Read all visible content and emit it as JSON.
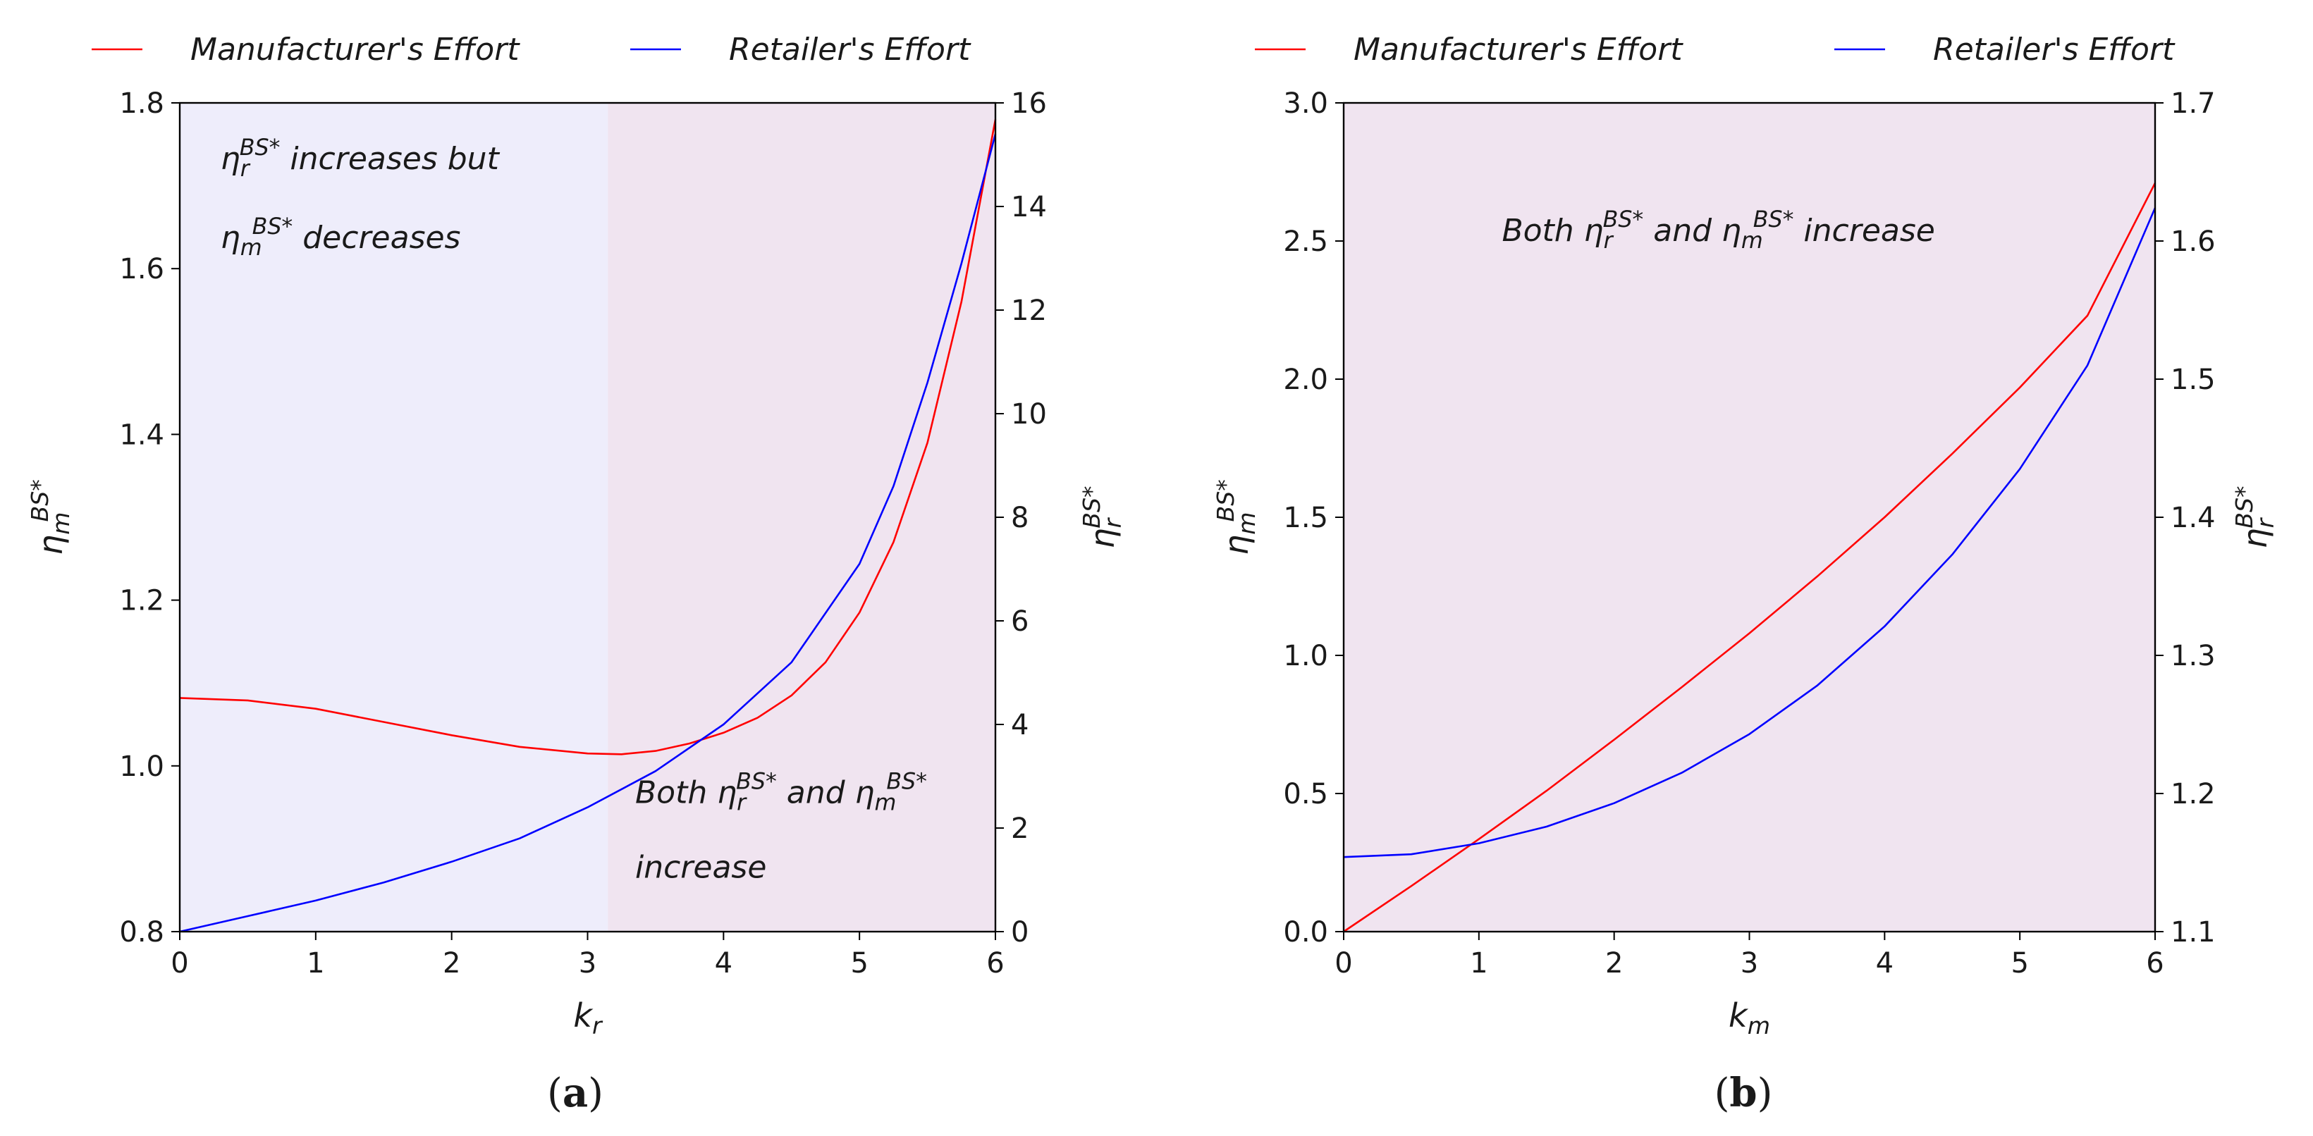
{
  "figure": {
    "captions": {
      "a_open": "(",
      "a_letter": "a",
      "a_close": ")",
      "b_open": "(",
      "b_letter": "b",
      "b_close": ")"
    }
  },
  "chart_data": [
    {
      "id": "a",
      "type": "line",
      "legend": {
        "placement": "top",
        "entries": [
          {
            "label": "Manufacturer's Effort",
            "color": "#ff0000"
          },
          {
            "label": "Retailer's Effort",
            "color": "#0000ff"
          }
        ]
      },
      "xlabel_base": "k",
      "xlabel_sub": "r",
      "ylabel_left": {
        "base": "η",
        "sub": "m",
        "sup": "BS*"
      },
      "ylabel_right": {
        "base": "η",
        "sub": "r",
        "sup": "BS*"
      },
      "xlim": [
        0,
        6
      ],
      "ylim_left": [
        0.8,
        1.8
      ],
      "ylim_right": [
        0,
        16
      ],
      "xticks": [
        0,
        1,
        2,
        3,
        4,
        5,
        6
      ],
      "xtick_labels": [
        "0",
        "1",
        "2",
        "3",
        "4",
        "5",
        "6"
      ],
      "yticks_left": [
        0.8,
        1.0,
        1.2,
        1.4,
        1.6,
        1.8
      ],
      "ytick_labels_left": [
        "0.8",
        "1.0",
        "1.2",
        "1.4",
        "1.6",
        "1.8"
      ],
      "yticks_right": [
        0,
        2,
        4,
        6,
        8,
        10,
        12,
        14,
        16
      ],
      "ytick_labels_right": [
        "0",
        "2",
        "4",
        "6",
        "8",
        "10",
        "12",
        "14",
        "16"
      ],
      "regions": [
        {
          "x_range": [
            0,
            3.15
          ],
          "color": "#eeedfb"
        },
        {
          "x_range": [
            3.15,
            6
          ],
          "color": "#f0e4f0"
        }
      ],
      "annotations": [
        {
          "at": [
            0.3,
            1.72
          ],
          "axis": "left",
          "parts": [
            {
              "t": "η"
            },
            {
              "t": "r",
              "baseline": "sub"
            },
            {
              "t": "BS*",
              "baseline": "super"
            },
            {
              "t": " increases but"
            }
          ]
        },
        {
          "at": [
            0.3,
            1.625
          ],
          "axis": "left",
          "parts": [
            {
              "t": "η"
            },
            {
              "t": "m",
              "baseline": "sub"
            },
            {
              "t": "BS*",
              "baseline": "super"
            },
            {
              "t": " decreases"
            }
          ]
        },
        {
          "at": [
            3.35,
            0.955
          ],
          "axis": "left",
          "parts": [
            {
              "t": "Both η"
            },
            {
              "t": "r",
              "baseline": "sub"
            },
            {
              "t": "BS*",
              "baseline": "super"
            },
            {
              "t": " and η"
            },
            {
              "t": "m",
              "baseline": "sub"
            },
            {
              "t": "BS*",
              "baseline": "super"
            }
          ]
        },
        {
          "at": [
            3.35,
            0.865
          ],
          "axis": "left",
          "parts": [
            {
              "t": "increase"
            }
          ]
        }
      ],
      "series": [
        {
          "name": "Manufacturer's Effort",
          "color": "#ff0000",
          "axis": "left",
          "x": [
            0,
            0.5,
            1,
            1.5,
            2,
            2.5,
            3,
            3.25,
            3.5,
            3.75,
            4,
            4.25,
            4.5,
            4.75,
            5,
            5.25,
            5.5,
            5.75,
            6
          ],
          "y": [
            1.082,
            1.079,
            1.069,
            1.053,
            1.037,
            1.023,
            1.015,
            1.014,
            1.018,
            1.027,
            1.04,
            1.058,
            1.085,
            1.125,
            1.185,
            1.27,
            1.39,
            1.56,
            1.78
          ]
        },
        {
          "name": "Retailer's Effort",
          "color": "#0000ff",
          "axis": "right",
          "x": [
            0,
            0.5,
            1,
            1.5,
            2,
            2.5,
            3,
            3.5,
            4,
            4.5,
            5,
            5.25,
            5.5,
            5.75,
            6
          ],
          "y": [
            0,
            0.3,
            0.6,
            0.95,
            1.35,
            1.8,
            2.4,
            3.1,
            4.0,
            5.2,
            7.1,
            8.6,
            10.6,
            12.9,
            15.4
          ]
        }
      ]
    },
    {
      "id": "b",
      "type": "line",
      "legend": {
        "placement": "top",
        "entries": [
          {
            "label": "Manufacturer's Effort",
            "color": "#ff0000"
          },
          {
            "label": "Retailer's Effort",
            "color": "#0000ff"
          }
        ]
      },
      "xlabel_base": "k",
      "xlabel_sub": "m",
      "ylabel_left": {
        "base": "η",
        "sub": "m",
        "sup": "BS*"
      },
      "ylabel_right": {
        "base": "η",
        "sub": "r",
        "sup": "BS*"
      },
      "xlim": [
        0,
        6
      ],
      "ylim_left": [
        0,
        3.0
      ],
      "ylim_right": [
        1.1,
        1.7
      ],
      "xticks": [
        0,
        1,
        2,
        3,
        4,
        5,
        6
      ],
      "xtick_labels": [
        "0",
        "1",
        "2",
        "3",
        "4",
        "5",
        "6"
      ],
      "yticks_left": [
        0,
        0.5,
        1.0,
        1.5,
        2.0,
        2.5,
        3.0
      ],
      "ytick_labels_left": [
        "0.0",
        "0.5",
        "1.0",
        "1.5",
        "2.0",
        "2.5",
        "3.0"
      ],
      "yticks_right": [
        1.1,
        1.2,
        1.3,
        1.4,
        1.5,
        1.6,
        1.7
      ],
      "ytick_labels_right": [
        "1.1",
        "1.2",
        "1.3",
        "1.4",
        "1.5",
        "1.6",
        "1.7"
      ],
      "regions": [
        {
          "x_range": [
            0,
            6
          ],
          "color": "#f0e4f0"
        }
      ],
      "annotations": [
        {
          "at": [
            1.17,
            2.5
          ],
          "axis": "left",
          "parts": [
            {
              "t": "Both η"
            },
            {
              "t": "r",
              "baseline": "sub"
            },
            {
              "t": "BS*",
              "baseline": "super"
            },
            {
              "t": " and η"
            },
            {
              "t": "m",
              "baseline": "sub"
            },
            {
              "t": "BS*",
              "baseline": "super"
            },
            {
              "t": " increase"
            }
          ]
        }
      ],
      "series": [
        {
          "name": "Manufacturer's Effort",
          "color": "#ff0000",
          "axis": "left",
          "x": [
            0,
            0.5,
            1,
            1.5,
            2,
            2.5,
            3,
            3.5,
            4,
            4.5,
            5,
            5.5,
            6
          ],
          "y": [
            0,
            0.165,
            0.335,
            0.51,
            0.695,
            0.885,
            1.08,
            1.285,
            1.5,
            1.73,
            1.97,
            2.23,
            2.71
          ]
        },
        {
          "name": "Retailer's Effort",
          "color": "#0000ff",
          "axis": "right",
          "x": [
            0,
            0.5,
            1,
            1.5,
            2,
            2.5,
            3,
            3.5,
            4,
            4.5,
            5,
            5.5,
            6
          ],
          "y": [
            1.154,
            1.156,
            1.164,
            1.176,
            1.193,
            1.215,
            1.243,
            1.278,
            1.321,
            1.373,
            1.435,
            1.51,
            1.624
          ]
        }
      ]
    }
  ]
}
